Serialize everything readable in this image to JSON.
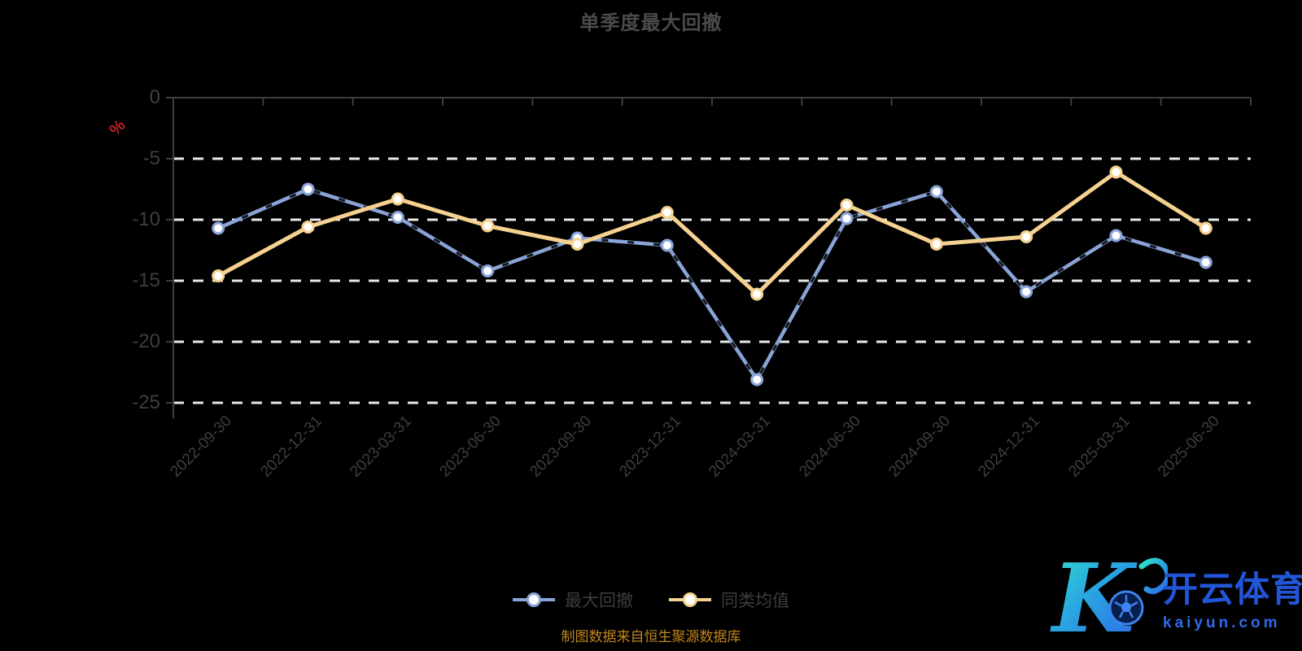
{
  "title": {
    "text": "单季度最大回撤"
  },
  "y_axis": {
    "unit": "%",
    "unit_color": "#c32222",
    "tick_labels": [
      "0",
      "-5",
      "-10",
      "-15",
      "-20",
      "-25"
    ]
  },
  "chart_data": {
    "type": "line",
    "title": "单季度最大回撤",
    "xlabel": "",
    "ylabel": "%",
    "ylim": [
      -25,
      0
    ],
    "y_ticks": [
      0,
      -5,
      -10,
      -15,
      -20,
      -25
    ],
    "grid": "horizontal white dashed gridlines at each y tick",
    "legend_position": "bottom-center",
    "background": "#000000",
    "categories": [
      "2022-09-30",
      "2022-12-31",
      "2023-03-31",
      "2023-06-30",
      "2023-09-30",
      "2023-12-31",
      "2024-03-31",
      "2024-06-30",
      "2024-09-30",
      "2024-12-31",
      "2025-03-31",
      "2025-06-30"
    ],
    "series": [
      {
        "name": "最大回撤",
        "color": "#8aa4d8",
        "marker": "circle-white-fill",
        "values": [
          -10.7,
          -7.5,
          -9.8,
          -14.2,
          -11.5,
          -12.1,
          -23.1,
          -9.9,
          -7.7,
          -15.9,
          -11.3,
          -13.5
        ]
      },
      {
        "name": "同类均值",
        "color": "#f6d290",
        "marker": "circle-white-fill",
        "values": [
          -14.6,
          -10.6,
          -8.3,
          -10.5,
          -12.0,
          -9.4,
          -16.1,
          -8.8,
          -12.0,
          -11.4,
          -6.1,
          -10.7
        ]
      }
    ]
  },
  "legend": {
    "items": [
      {
        "label": "最大回撤",
        "color": "#8aa4d8"
      },
      {
        "label": "同类均值",
        "color": "#f6d290"
      }
    ]
  },
  "footer": {
    "source_note": "制图数据来自恒生聚源数据库"
  },
  "watermark": {
    "brand_cn": "开云体育",
    "brand_domain": "kaiyun.com",
    "icon": "soccer-ball-icon",
    "accent_blue": "#2e6be8",
    "gradient": [
      "#2ee6c8",
      "#2b6de4"
    ]
  }
}
